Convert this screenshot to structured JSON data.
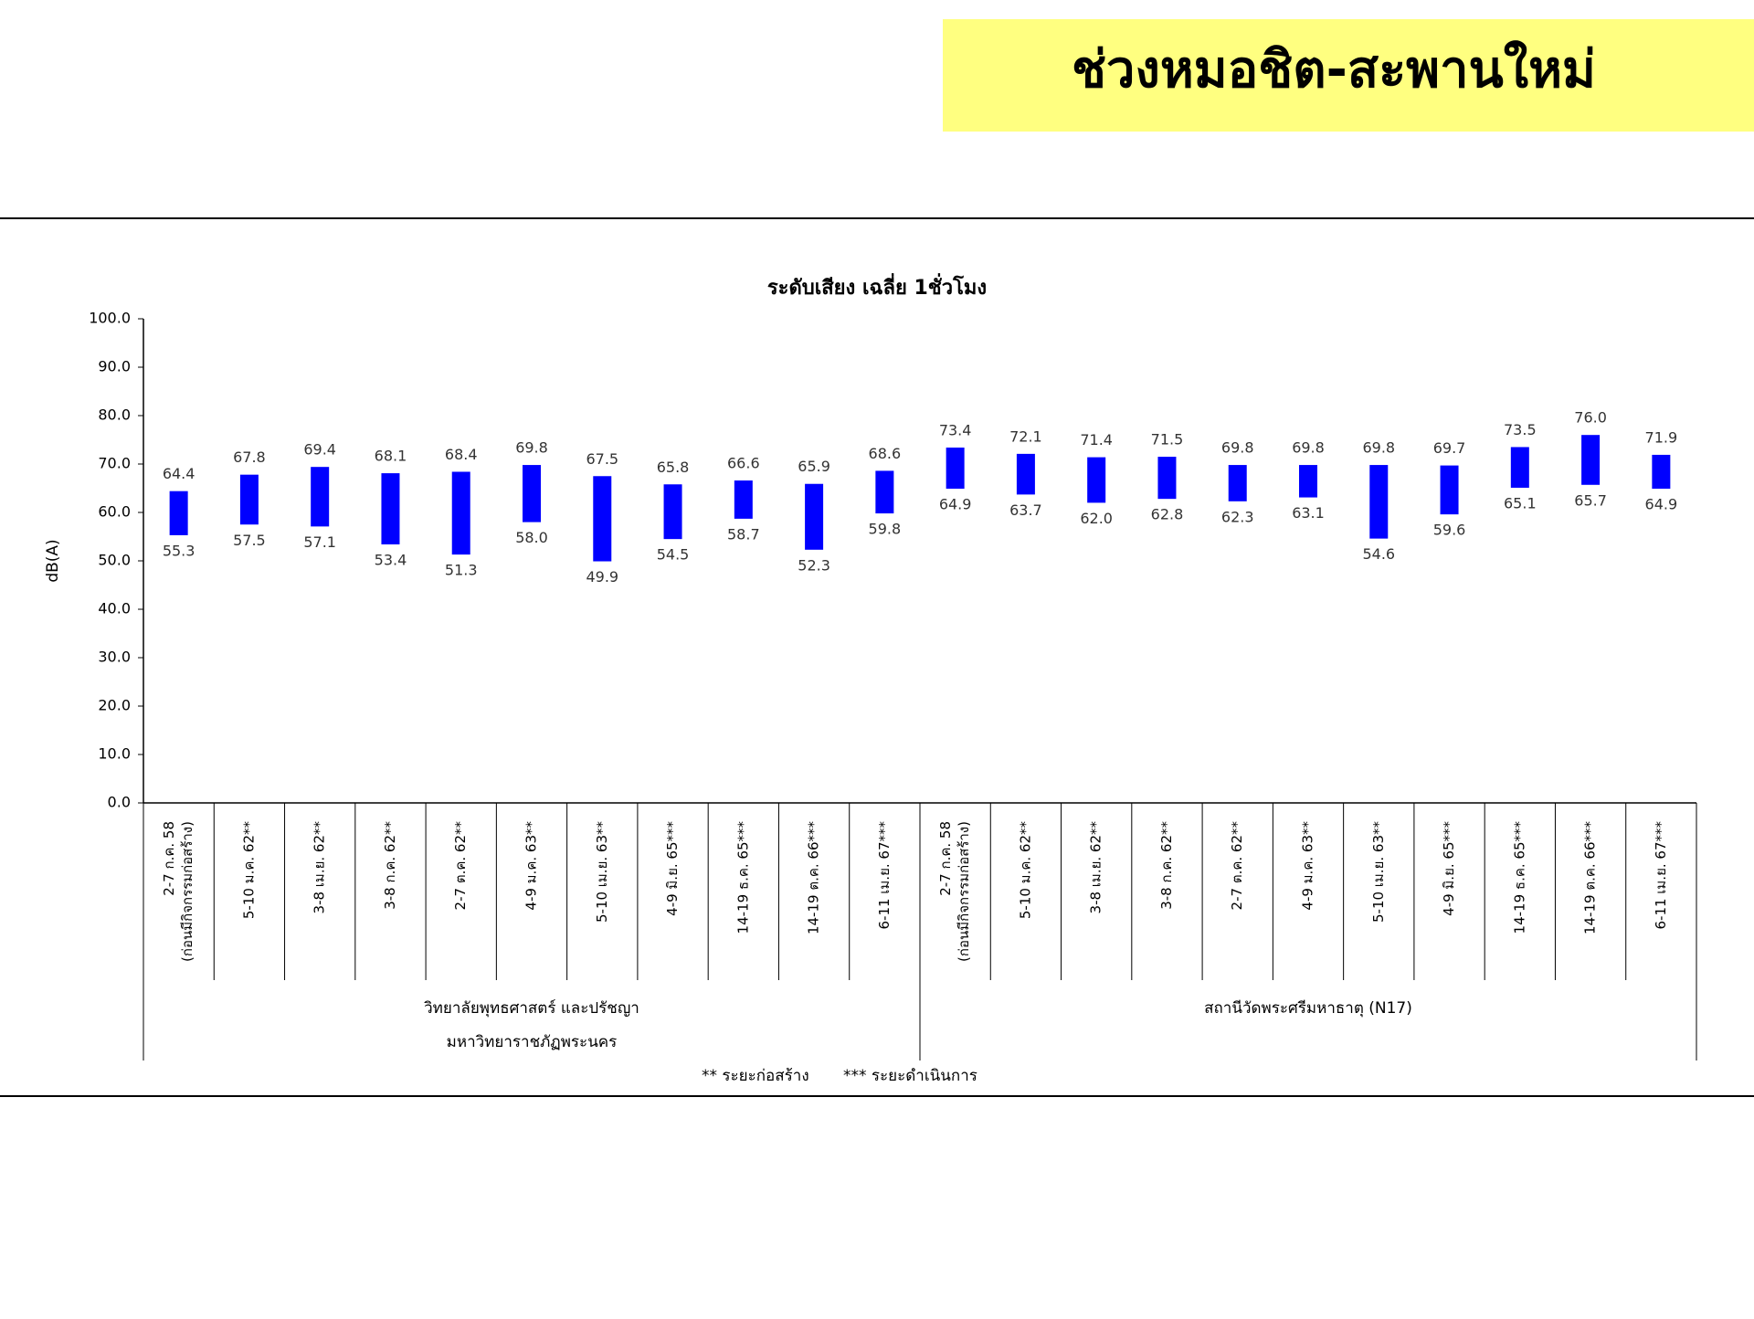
{
  "header": {
    "title": "ช่วงหมอชิต-สะพานใหม่"
  },
  "chart_data": {
    "type": "range-bar",
    "title": "ระดับเสียง เฉลี่ย 1ชั่วโมง",
    "y_label": "dB(A)",
    "color": "#0000ff",
    "ylim": [
      0,
      100
    ],
    "yticks": [
      {
        "value": 0,
        "label": "0.0"
      },
      {
        "value": 10,
        "label": "10.0"
      },
      {
        "value": 20,
        "label": "20.0"
      },
      {
        "value": 30,
        "label": "30.0"
      },
      {
        "value": 40,
        "label": "40.0"
      },
      {
        "value": 50,
        "label": "50.0"
      },
      {
        "value": 60,
        "label": "60.0"
      },
      {
        "value": 70,
        "label": "70.0"
      },
      {
        "value": 80,
        "label": "80.0"
      },
      {
        "value": 90,
        "label": "90.0"
      },
      {
        "value": 100,
        "label": "100.0"
      }
    ],
    "groups": [
      {
        "label": [
          "วิทยาลัยพุทธศาสตร์ และปรัชญา",
          "มหาวิทยาราชภัฏพระนคร"
        ],
        "categories": [
          [
            "2-7 ก.ค. 58",
            "(ก่อนมีกิจกรรมก่อสร้าง)"
          ],
          [
            "5-10 ม.ค. 62**"
          ],
          [
            "3-8 เม.ย. 62**"
          ],
          [
            "3-8 ก.ค. 62**"
          ],
          [
            "2-7 ต.ค. 62**"
          ],
          [
            "4-9 ม.ค. 63**"
          ],
          [
            "5-10 เม.ย. 63**"
          ],
          [
            "4-9 มิ.ย. 65***"
          ],
          [
            "14-19 ธ.ค. 65***"
          ],
          [
            "14-19 ต.ค. 66***"
          ],
          [
            "6-11 เม.ย. 67***"
          ]
        ],
        "high": [
          64.4,
          67.8,
          69.4,
          68.1,
          68.4,
          69.8,
          67.5,
          65.8,
          66.6,
          65.9,
          68.6
        ],
        "low": [
          55.3,
          57.5,
          57.1,
          53.4,
          51.3,
          58.0,
          49.9,
          54.5,
          58.7,
          52.3,
          59.8
        ],
        "high_labels": [
          "64.4",
          "67.8",
          "69.4",
          "68.1",
          "68.4",
          "69.8",
          "67.5",
          "65.8",
          "66.6",
          "65.9",
          "68.6"
        ],
        "low_labels": [
          "55.3",
          "57.5",
          "57.1",
          "53.4",
          "51.3",
          "58.0",
          "49.9",
          "54.5",
          "58.7",
          "52.3",
          "59.8"
        ]
      },
      {
        "label": [
          "สถานีวัดพระศรีมหาธาตุ (N17)"
        ],
        "categories": [
          [
            "2-7 ก.ค. 58",
            "(ก่อนมีกิจกรรมก่อสร้าง)"
          ],
          [
            "5-10 ม.ค. 62**"
          ],
          [
            "3-8 เม.ย. 62**"
          ],
          [
            "3-8 ก.ค. 62**"
          ],
          [
            "2-7 ต.ค. 62**"
          ],
          [
            "4-9 ม.ค. 63**"
          ],
          [
            "5-10 เม.ย. 63**"
          ],
          [
            "4-9 มิ.ย. 65***"
          ],
          [
            "14-19 ธ.ค. 65***"
          ],
          [
            "14-19 ต.ค. 66***"
          ],
          [
            "6-11 เม.ย. 67***"
          ]
        ],
        "high": [
          73.4,
          72.1,
          71.4,
          71.5,
          69.8,
          69.8,
          69.8,
          69.7,
          73.5,
          76.0,
          71.9
        ],
        "low": [
          64.9,
          63.7,
          62.0,
          62.8,
          62.3,
          63.1,
          54.6,
          59.6,
          65.1,
          65.7,
          64.9
        ],
        "high_labels": [
          "73.4",
          "72.1",
          "71.4",
          "71.5",
          "69.8",
          "69.8",
          "69.8",
          "69.7",
          "73.5",
          "76.0",
          "71.9"
        ],
        "low_labels": [
          "64.9",
          "63.7",
          "62.0",
          "62.8",
          "62.3",
          "63.1",
          "54.6",
          "59.6",
          "65.1",
          "65.7",
          "64.9"
        ]
      }
    ],
    "notes": [
      "** ระยะก่อสร้าง",
      "*** ระยะดำเนินการ"
    ]
  }
}
